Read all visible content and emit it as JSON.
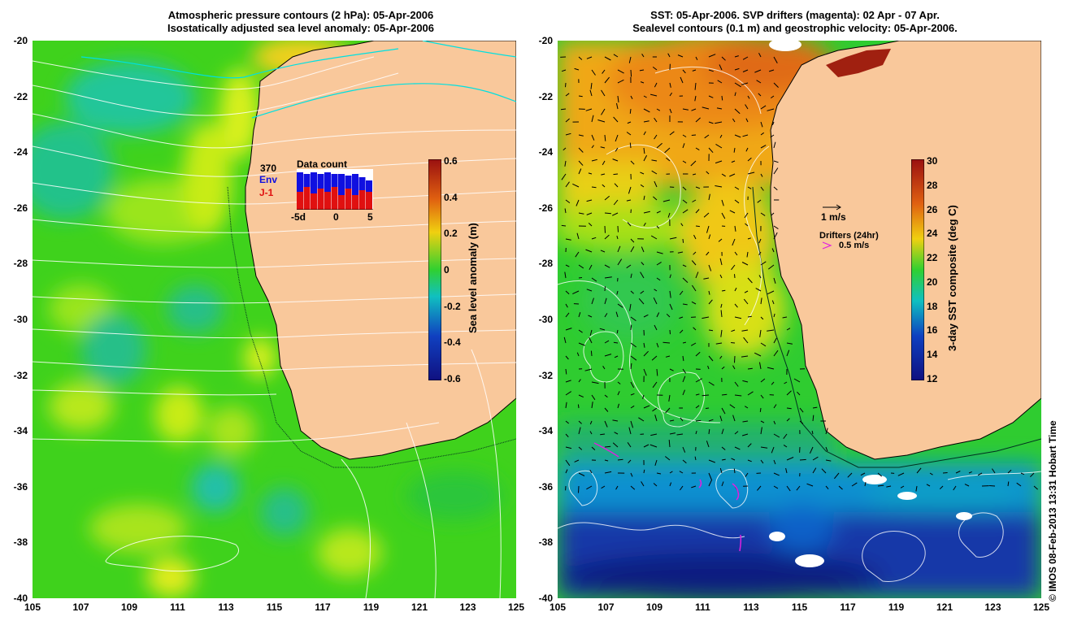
{
  "left_panel": {
    "title_line1": "Atmospheric pressure contours (2 hPa): 05-Apr-2006",
    "title_line2": "Isostatically adjusted sea level anomaly: 05-Apr-2006",
    "x_ticks": [
      "105",
      "107",
      "109",
      "111",
      "113",
      "115",
      "117",
      "119",
      "121",
      "123",
      "125"
    ],
    "y_ticks": [
      "-20",
      "-22",
      "-24",
      "-26",
      "-28",
      "-30",
      "-32",
      "-34",
      "-36",
      "-38",
      "-40"
    ],
    "colorbar": {
      "label": "Sea level anomaly (m)",
      "ticks": [
        "0.6",
        "0.4",
        "0.2",
        "0",
        "-0.2",
        "-0.4",
        "-0.6"
      ],
      "range": [
        -0.6,
        0.6
      ]
    },
    "data_count": {
      "title": "Data count",
      "total": "370",
      "env_label": "Env",
      "j1_label": "J-1",
      "x_ticks": [
        "-5d",
        "0",
        "5"
      ],
      "env_color": "#1010e0",
      "j1_color": "#e01010"
    }
  },
  "right_panel": {
    "title_line1": "SST: 05-Apr-2006. SVP drifters (magenta): 02 Apr - 07 Apr.",
    "title_line2": "Sealevel contours (0.1 m) and geostrophic velocity: 05-Apr-2006.",
    "x_ticks": [
      "105",
      "107",
      "109",
      "111",
      "113",
      "115",
      "117",
      "119",
      "121",
      "123",
      "125"
    ],
    "y_ticks": [
      "-20",
      "-22",
      "-24",
      "-26",
      "-28",
      "-30",
      "-32",
      "-34",
      "-36",
      "-38",
      "-40"
    ],
    "colorbar": {
      "label": "3-day SST composite (deg C)",
      "ticks": [
        "30",
        "28",
        "26",
        "24",
        "22",
        "20",
        "18",
        "16",
        "14",
        "12"
      ],
      "range": [
        12,
        30
      ]
    },
    "velocity_scale": "1 m/s",
    "drifters_label": "Drifters (24hr)",
    "drifters_scale": "0.5 m/s"
  },
  "credit": "© IMOS 08-Feb-2013 13:31 Hobart Time",
  "colors": {
    "land": "#f9c89b",
    "sla_green": "#3fd21c",
    "sst_blue": "#1030a0",
    "drifter_magenta": "#e020e0"
  }
}
